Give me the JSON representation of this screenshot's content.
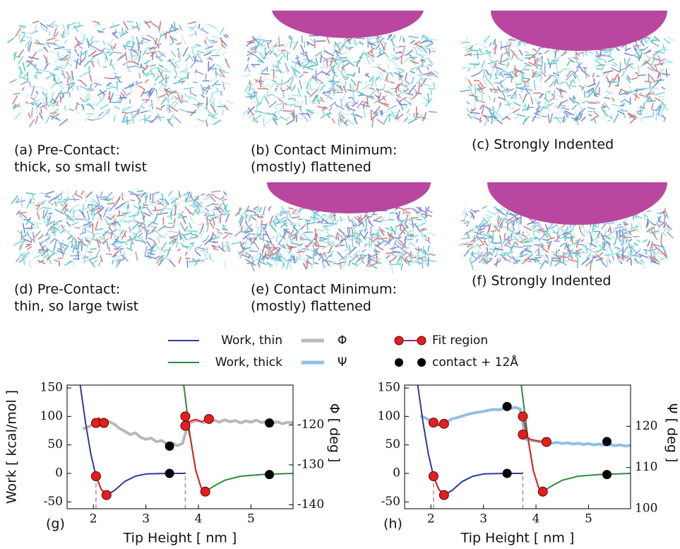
{
  "panels": [
    {
      "lines": [
        "(a) Pre-Contact:",
        "thick, so small twist"
      ]
    },
    {
      "lines": [
        "(b) Contact Minimum:",
        "(mostly) flattened"
      ]
    },
    {
      "lines": [
        "(c) Strongly Indented"
      ]
    },
    {
      "lines": [
        "(d) Pre-Contact:",
        "thin, so large twist"
      ]
    },
    {
      "lines": [
        "(e) Contact Minimum:",
        "(mostly) flattened"
      ]
    },
    {
      "lines": [
        "(f) Strongly Indented"
      ]
    }
  ],
  "legend": [
    {
      "name": "Work, thin",
      "color": "#2c3a9c",
      "marker": "line"
    },
    {
      "name": "Work, thick",
      "color": "#2e8b3a",
      "marker": "line"
    },
    {
      "name": "Φ",
      "color": "#b8b8b8",
      "marker": "band"
    },
    {
      "name": "Ψ",
      "color": "#8fbfe6",
      "marker": "band"
    },
    {
      "name": "Fit region",
      "color": "#e02020",
      "marker": "fit"
    },
    {
      "name": "contact + 12Å",
      "color": "#000000",
      "marker": "dots"
    }
  ],
  "chart_data": [
    {
      "type": "line",
      "panel_label": "(g)",
      "xlabel": "Tip Height [ nm ]",
      "ylabel": "Work [ kcal/mol ]",
      "y2label": "Φ [ deg ]",
      "xlim": [
        1.5,
        5.8
      ],
      "xticks": [
        2,
        3,
        4,
        5
      ],
      "ylim": [
        -62,
        155
      ],
      "yticks": [
        -50,
        0,
        50,
        100,
        150
      ],
      "y2lim": [
        -141,
        -110
      ],
      "y2ticks": [
        -140,
        -130,
        -120
      ],
      "vlines": [
        2.05,
        3.75
      ],
      "series": [
        {
          "style": "band",
          "axis": "y2",
          "color": "#b8b8b8",
          "x": [
            1.8,
            1.9,
            2.0,
            2.1,
            2.2,
            2.3,
            2.4,
            2.5,
            2.6,
            2.7,
            2.8,
            2.9,
            3.0,
            3.1,
            3.2,
            3.3,
            3.4,
            3.5,
            3.6,
            3.7,
            3.8,
            3.9,
            4.0,
            4.1,
            4.2,
            4.3,
            4.4,
            4.5,
            4.6,
            4.7,
            4.8,
            4.9,
            5.0,
            5.1,
            5.2,
            5.3,
            5.4,
            5.5,
            5.6,
            5.7,
            5.8
          ],
          "values": [
            -121,
            -120.5,
            -119.8,
            -118.9,
            -118.5,
            -119.2,
            -119.8,
            -120.9,
            -121.6,
            -122.4,
            -122.0,
            -123.1,
            -123.6,
            -123.3,
            -124.2,
            -123.9,
            -124.8,
            -124.5,
            -125.2,
            -124.6,
            -119.7,
            -119.1,
            -118.9,
            -119.4,
            -118.6,
            -118.8,
            -119.3,
            -118.7,
            -119.2,
            -118.9,
            -119.5,
            -119.0,
            -119.3,
            -118.8,
            -119.4,
            -119.1,
            -119.6,
            -119.2,
            -119.7,
            -119.3,
            -119.5
          ]
        },
        {
          "style": "line",
          "color": "#2c3a9c",
          "x": [
            1.75,
            1.85,
            1.95,
            2.05,
            2.15,
            2.25,
            2.4,
            2.6,
            2.8,
            3.0,
            3.4,
            3.75
          ],
          "values": [
            155,
            90,
            35,
            -5,
            -28,
            -38,
            -30,
            -14,
            -5,
            -1,
            0,
            0
          ]
        },
        {
          "style": "line",
          "color": "#2e8b3a",
          "x": [
            3.72,
            3.78,
            3.85,
            3.95,
            4.05,
            4.13,
            4.3,
            4.5,
            4.8,
            5.2,
            5.8
          ],
          "values": [
            155,
            110,
            60,
            5,
            -25,
            -32,
            -22,
            -12,
            -5,
            -2,
            0
          ]
        },
        {
          "style": "fit",
          "axis": "y2",
          "color": "#e02020",
          "x": [
            2.05,
            2.1,
            2.15,
            2.2,
            3.0,
            3.75,
            3.85,
            3.95,
            4.05,
            4.2
          ],
          "values": [
            -119.5,
            -118.2,
            -119.0,
            -119.5,
            null,
            -120.2,
            -119.0,
            -118.6,
            -119.2,
            -118.5
          ]
        },
        {
          "style": "fit",
          "color": "#e02020",
          "x": [
            2.05,
            2.15,
            2.25,
            3.0,
            3.75,
            3.85,
            3.95,
            4.05,
            4.13
          ],
          "values": [
            -5,
            -28,
            -38,
            null,
            100,
            60,
            5,
            -25,
            -32
          ]
        },
        {
          "style": "dots",
          "color": "#000000",
          "x": [
            3.45,
            5.35
          ],
          "values": [
            0,
            -2
          ]
        },
        {
          "style": "dots",
          "axis": "y2",
          "color": "#000000",
          "x": [
            3.45,
            5.35
          ],
          "values": [
            -125.3,
            -119.5
          ]
        }
      ]
    },
    {
      "type": "line",
      "panel_label": "(h)",
      "xlabel": "Tip Height [ nm ]",
      "ylabel": "Work [ kcal/mol ]",
      "y2label": "Ψ [ deg ]",
      "xlim": [
        1.5,
        5.8
      ],
      "xticks": [
        2,
        3,
        4,
        5
      ],
      "ylim": [
        -62,
        155
      ],
      "yticks": [
        -50,
        0,
        50,
        100,
        150
      ],
      "y2lim": [
        100,
        130
      ],
      "y2ticks": [
        100,
        110,
        120
      ],
      "vlines": [
        2.05,
        3.75
      ],
      "series": [
        {
          "style": "band",
          "axis": "y2",
          "color": "#8fbfe6",
          "x": [
            1.8,
            1.9,
            2.0,
            2.1,
            2.2,
            2.3,
            2.4,
            2.5,
            2.6,
            2.7,
            2.8,
            2.9,
            3.0,
            3.1,
            3.2,
            3.3,
            3.4,
            3.5,
            3.6,
            3.7,
            3.8,
            3.9,
            4.0,
            4.1,
            4.2,
            4.3,
            4.4,
            4.5,
            4.6,
            4.7,
            4.8,
            4.9,
            5.0,
            5.1,
            5.2,
            5.3,
            5.4,
            5.5,
            5.6,
            5.7,
            5.8
          ],
          "values": [
            122.6,
            122.0,
            121.3,
            120.6,
            120.4,
            121.0,
            121.8,
            122.1,
            122.5,
            122.9,
            123.2,
            123.4,
            123.6,
            123.9,
            124.1,
            124.0,
            124.4,
            124.3,
            124.6,
            124.2,
            116.9,
            116.6,
            116.4,
            116.2,
            116.3,
            115.9,
            116.1,
            115.8,
            116.0,
            115.7,
            115.9,
            115.6,
            115.8,
            115.5,
            115.7,
            115.4,
            115.6,
            115.3,
            115.5,
            115.2,
            115.4
          ]
        },
        {
          "style": "line",
          "color": "#2c3a9c",
          "x": [
            1.75,
            1.85,
            1.95,
            2.05,
            2.15,
            2.25,
            2.4,
            2.6,
            2.8,
            3.0,
            3.4,
            3.75
          ],
          "values": [
            155,
            90,
            35,
            -5,
            -28,
            -38,
            -30,
            -14,
            -5,
            -1,
            0,
            0
          ]
        },
        {
          "style": "line",
          "color": "#2e8b3a",
          "x": [
            3.72,
            3.78,
            3.85,
            3.95,
            4.05,
            4.13,
            4.3,
            4.5,
            4.8,
            5.2,
            5.8
          ],
          "values": [
            155,
            110,
            60,
            5,
            -25,
            -32,
            -22,
            -12,
            -5,
            -2,
            0
          ]
        },
        {
          "style": "fit",
          "axis": "y2",
          "color": "#e02020",
          "x": [
            2.05,
            2.15,
            2.25,
            3.0,
            3.75,
            3.9,
            4.05,
            4.2
          ],
          "values": [
            120.9,
            120.2,
            120.6,
            null,
            118.0,
            116.8,
            116.4,
            116.2
          ]
        },
        {
          "style": "fit",
          "color": "#e02020",
          "x": [
            2.05,
            2.15,
            2.25,
            3.0,
            3.75,
            3.85,
            3.95,
            4.05,
            4.13
          ],
          "values": [
            -5,
            -28,
            -38,
            null,
            100,
            60,
            5,
            -25,
            -32
          ]
        },
        {
          "style": "dots",
          "color": "#000000",
          "x": [
            3.45,
            5.35
          ],
          "values": [
            0,
            -2
          ]
        },
        {
          "style": "dots",
          "axis": "y2",
          "color": "#000000",
          "x": [
            3.45,
            5.35
          ],
          "values": [
            124.8,
            116.3
          ]
        }
      ]
    }
  ]
}
